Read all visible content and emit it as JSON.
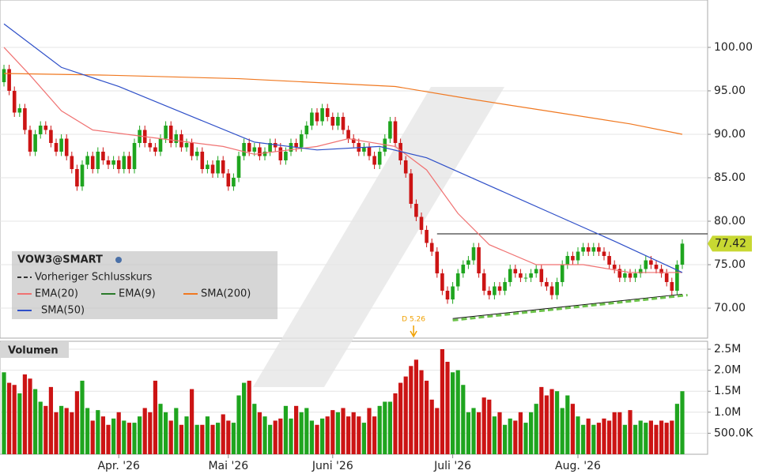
{
  "chart_data": {
    "type": "candlestick",
    "title": "VOW3@SMART",
    "xlim": [
      -0.76,
      134.85
    ],
    "xticks": [
      {
        "value": 22,
        "label": "Apr. '26"
      },
      {
        "value": 43,
        "label": "Mai '26"
      },
      {
        "value": 63,
        "label": "Juni '26"
      },
      {
        "value": 86,
        "label": "Juli '26"
      },
      {
        "value": 110,
        "label": "Aug. '26"
      }
    ],
    "ylim": [
      66.55,
      105.45
    ],
    "yticks": [
      {
        "value": 70,
        "label": "70.00"
      },
      {
        "value": 75,
        "label": "75.00"
      },
      {
        "value": 80,
        "label": "80.00"
      },
      {
        "value": 85,
        "label": "85.00"
      },
      {
        "value": 90,
        "label": "90.00"
      },
      {
        "value": 95,
        "label": "95.00"
      },
      {
        "value": 100,
        "label": "100.00"
      }
    ],
    "grid": true,
    "up_color": "#1fa51f",
    "down_color": "#cc1414",
    "open": [
      96,
      97.5,
      95,
      92.5,
      93,
      90.5,
      88,
      90,
      91,
      90.5,
      89,
      88,
      89.5,
      87.5,
      86,
      84,
      86.5,
      87.5,
      86,
      88,
      87,
      86.5,
      87,
      86,
      87.5,
      86,
      89,
      90.5,
      89,
      88.5,
      88,
      89.5,
      91,
      89,
      90,
      88.5,
      89,
      87.5,
      88,
      86,
      86.5,
      85.5,
      87,
      85.5,
      84,
      85,
      87.5,
      89,
      88,
      88.5,
      87.5,
      88,
      89,
      88.5,
      87,
      88,
      89,
      88.5,
      90,
      91,
      92.5,
      91.5,
      93,
      92,
      91,
      92,
      90.5,
      89.5,
      89,
      88,
      88.5,
      87.5,
      86.5,
      88,
      89.5,
      91.5,
      89,
      87,
      85.5,
      82,
      80.5,
      79,
      77.5,
      76.5,
      74,
      72,
      71,
      72.5,
      74,
      75,
      75.5,
      77,
      74,
      72,
      71.5,
      72.5,
      72,
      73,
      74.5,
      74,
      73.5,
      73.5,
      74,
      74.5,
      73,
      72.5,
      71.5,
      73,
      75,
      76,
      75.5,
      76.5,
      77,
      76.5,
      77,
      76.5,
      76,
      75,
      74.5,
      73.5,
      74,
      73.5,
      74,
      74.5,
      75.5,
      75,
      74.5,
      74,
      73,
      72,
      75
    ],
    "high": [
      98,
      98,
      95.5,
      93.5,
      93.5,
      91,
      90.5,
      91.5,
      91.5,
      91,
      89.5,
      90,
      90,
      88,
      86.5,
      87,
      88,
      88,
      88.5,
      88.5,
      87.5,
      87.5,
      87.5,
      88,
      88,
      89.5,
      91,
      91,
      89.5,
      89,
      90,
      91.5,
      91.5,
      90.5,
      90.5,
      89.5,
      89.5,
      88.5,
      88.5,
      87,
      87,
      87.5,
      87.5,
      86,
      85.5,
      88,
      89.5,
      89.5,
      89,
      89,
      88.5,
      89.5,
      89.5,
      89,
      88.5,
      89.5,
      89.5,
      90.5,
      91.5,
      93,
      93,
      93.5,
      93.5,
      92.5,
      92.5,
      92.5,
      91,
      90,
      89.5,
      89,
      89,
      88,
      88.5,
      90,
      92,
      92,
      89.5,
      87.5,
      86,
      82.5,
      81,
      79.5,
      78,
      77,
      74.5,
      72.5,
      73,
      74.5,
      75.5,
      76,
      77.5,
      77.5,
      74.5,
      72.5,
      73,
      73,
      73.5,
      75,
      75,
      74.5,
      74,
      74.5,
      75,
      75,
      73.5,
      73,
      73.5,
      75.5,
      76.5,
      76.5,
      77,
      77.5,
      77.5,
      77.5,
      77.5,
      77,
      76.5,
      75.5,
      75,
      74.5,
      74.5,
      74.5,
      75,
      76,
      76,
      75.5,
      75,
      74.5,
      73.5,
      75.5,
      77.92
    ],
    "low": [
      95.5,
      94.5,
      92,
      92,
      90,
      87.5,
      87.5,
      89.5,
      90,
      88.5,
      87.5,
      87.5,
      87,
      85.5,
      83.5,
      83.5,
      86,
      85.5,
      85.5,
      86.5,
      86,
      86,
      85.5,
      85.5,
      85.5,
      85.5,
      88.5,
      88.5,
      88,
      87.5,
      87.5,
      89,
      88.5,
      88.5,
      88,
      88,
      87,
      87,
      85.5,
      85.5,
      85,
      85,
      85,
      83.5,
      83.5,
      84.5,
      87,
      87.5,
      87.5,
      87,
      87,
      87.5,
      88,
      86.5,
      86.5,
      87.5,
      88,
      88,
      89.5,
      90.5,
      91,
      91,
      91.5,
      90.5,
      90.5,
      90,
      89,
      88.5,
      87.5,
      87.5,
      87,
      86,
      86,
      87.5,
      89,
      88.5,
      86.5,
      85,
      81.5,
      80,
      78.5,
      77,
      76,
      73.5,
      71.5,
      70.5,
      70.5,
      72,
      73.5,
      74.5,
      75,
      73.5,
      71.5,
      71,
      71,
      71.5,
      71.5,
      72.5,
      73.5,
      73,
      73,
      73,
      73.5,
      72.5,
      72,
      71,
      71,
      72.5,
      74.5,
      75,
      75,
      76,
      76,
      76,
      76,
      75.5,
      74.5,
      74,
      73,
      73,
      73,
      73,
      73.5,
      74,
      74.5,
      74,
      73.5,
      72.5,
      71.5,
      71.5,
      74.5
    ],
    "close": [
      97.5,
      95,
      92.5,
      93,
      90.5,
      88,
      90,
      91,
      90.5,
      89,
      88,
      89.5,
      87.5,
      86,
      84,
      86.5,
      87.5,
      86,
      88,
      87,
      86.5,
      87,
      86,
      87.5,
      86,
      89,
      90.5,
      89,
      88.5,
      88,
      89.5,
      91,
      89,
      90,
      88.5,
      89,
      87.5,
      88,
      86,
      86.5,
      85.5,
      87,
      85.5,
      84,
      85,
      87.5,
      89,
      88,
      88.5,
      87.5,
      88,
      89,
      88.5,
      87,
      88,
      89,
      88.5,
      90,
      91,
      92.5,
      91.5,
      93,
      92,
      91,
      92,
      90.5,
      89.5,
      89,
      88,
      88.5,
      87.5,
      86.5,
      88,
      89.5,
      91.5,
      89,
      87,
      85.5,
      82,
      80.5,
      79,
      77.5,
      76.5,
      74,
      72,
      71,
      72.5,
      74,
      75,
      75.5,
      77,
      74,
      72,
      71.5,
      72.5,
      72,
      73,
      74.5,
      74,
      73.5,
      73.5,
      74,
      74.5,
      73,
      72.5,
      71.5,
      73,
      75,
      76,
      75.5,
      76.5,
      77,
      76.5,
      77,
      76.5,
      76,
      75,
      74.5,
      73.5,
      74,
      73.5,
      74,
      74.5,
      75.5,
      75,
      74.5,
      74,
      73,
      72,
      75,
      77.42
    ],
    "series": [
      {
        "name": "Vorheriger Schlusskurs",
        "color": "#6cc24a",
        "dash": true,
        "x": [
          86,
          131
        ],
        "values": [
          68.6,
          71.5
        ]
      },
      {
        "name": "EMA(20)",
        "color": "#f07272",
        "x": [
          0,
          5,
          11,
          17,
          30,
          42,
          48,
          60,
          66,
          75,
          81,
          87,
          93,
          102,
          111,
          120,
          130
        ],
        "values": [
          100,
          96.8,
          92.7,
          90.5,
          89.5,
          88.6,
          87.7,
          88.6,
          89.5,
          88.6,
          85.9,
          80.9,
          77.3,
          75,
          75,
          74.1,
          74.1
        ]
      },
      {
        "name": "EMA(9)",
        "color": "#2a7a2a"
      },
      {
        "name": "SMA(200)",
        "color": "#f07820",
        "x": [
          0,
          20,
          45,
          75,
          90,
          105,
          120,
          130
        ],
        "values": [
          97,
          96.8,
          96.4,
          95.5,
          94,
          92.6,
          91.2,
          90
        ]
      },
      {
        "name": "SMA(50)",
        "color": "#2e4fc8",
        "x": [
          0,
          11,
          22,
          37,
          48,
          60,
          72,
          81,
          93,
          105,
          117,
          130
        ],
        "values": [
          102.7,
          97.7,
          95.5,
          91.8,
          89.1,
          88.2,
          88.6,
          87.3,
          84.1,
          80.9,
          77.7,
          74.1
        ]
      }
    ],
    "trendlines": [
      {
        "color": "#111111",
        "x": [
          83,
          134.85
        ],
        "values": [
          78.55,
          78.55
        ]
      },
      {
        "color": "#111111",
        "x": [
          86,
          130
        ],
        "values": [
          68.8,
          71.6
        ]
      }
    ],
    "events": [
      {
        "label": "D 5.26",
        "x": 78.5,
        "color": "#f0a000"
      }
    ],
    "volume": {
      "title": "Volumen",
      "ylim": [
        0,
        2688000
      ],
      "yticks": [
        {
          "value": 500000,
          "label": "500.0K"
        },
        {
          "value": 1000000,
          "label": "1.0M"
        },
        {
          "value": 1500000,
          "label": "1.5M"
        },
        {
          "value": 2000000,
          "label": "2.0M"
        },
        {
          "value": 2500000,
          "label": "2.5M"
        }
      ],
      "values": [
        1950000,
        1700000,
        1650000,
        1450000,
        1900000,
        1800000,
        1550000,
        1250000,
        1150000,
        1600000,
        1000000,
        1150000,
        1100000,
        1000000,
        1500000,
        1750000,
        1100000,
        800000,
        1050000,
        900000,
        700000,
        850000,
        1000000,
        800000,
        750000,
        750000,
        900000,
        1100000,
        1000000,
        1750000,
        1200000,
        1000000,
        800000,
        1100000,
        700000,
        900000,
        1550000,
        700000,
        700000,
        900000,
        700000,
        750000,
        950000,
        800000,
        750000,
        1400000,
        1700000,
        1750000,
        1200000,
        1000000,
        900000,
        700000,
        800000,
        850000,
        1150000,
        850000,
        1150000,
        1000000,
        1100000,
        800000,
        700000,
        850000,
        900000,
        1050000,
        1000000,
        1100000,
        900000,
        1000000,
        900000,
        750000,
        1100000,
        900000,
        1150000,
        1250000,
        1250000,
        1450000,
        1700000,
        1850000,
        2100000,
        2250000,
        2000000,
        1750000,
        1300000,
        1100000,
        2500000,
        2200000,
        1950000,
        2000000,
        1650000,
        1000000,
        1100000,
        1000000,
        1350000,
        1300000,
        900000,
        1000000,
        700000,
        850000,
        800000,
        1000000,
        750000,
        1000000,
        1200000,
        1600000,
        1400000,
        1550000,
        1500000,
        1100000,
        1400000,
        1200000,
        900000,
        700000,
        850000,
        700000,
        750000,
        850000,
        800000,
        1000000,
        1000000,
        700000,
        1050000,
        700000,
        800000,
        750000,
        800000,
        700000,
        800000,
        750000,
        800000,
        1200000,
        1500000
      ]
    }
  }
}
